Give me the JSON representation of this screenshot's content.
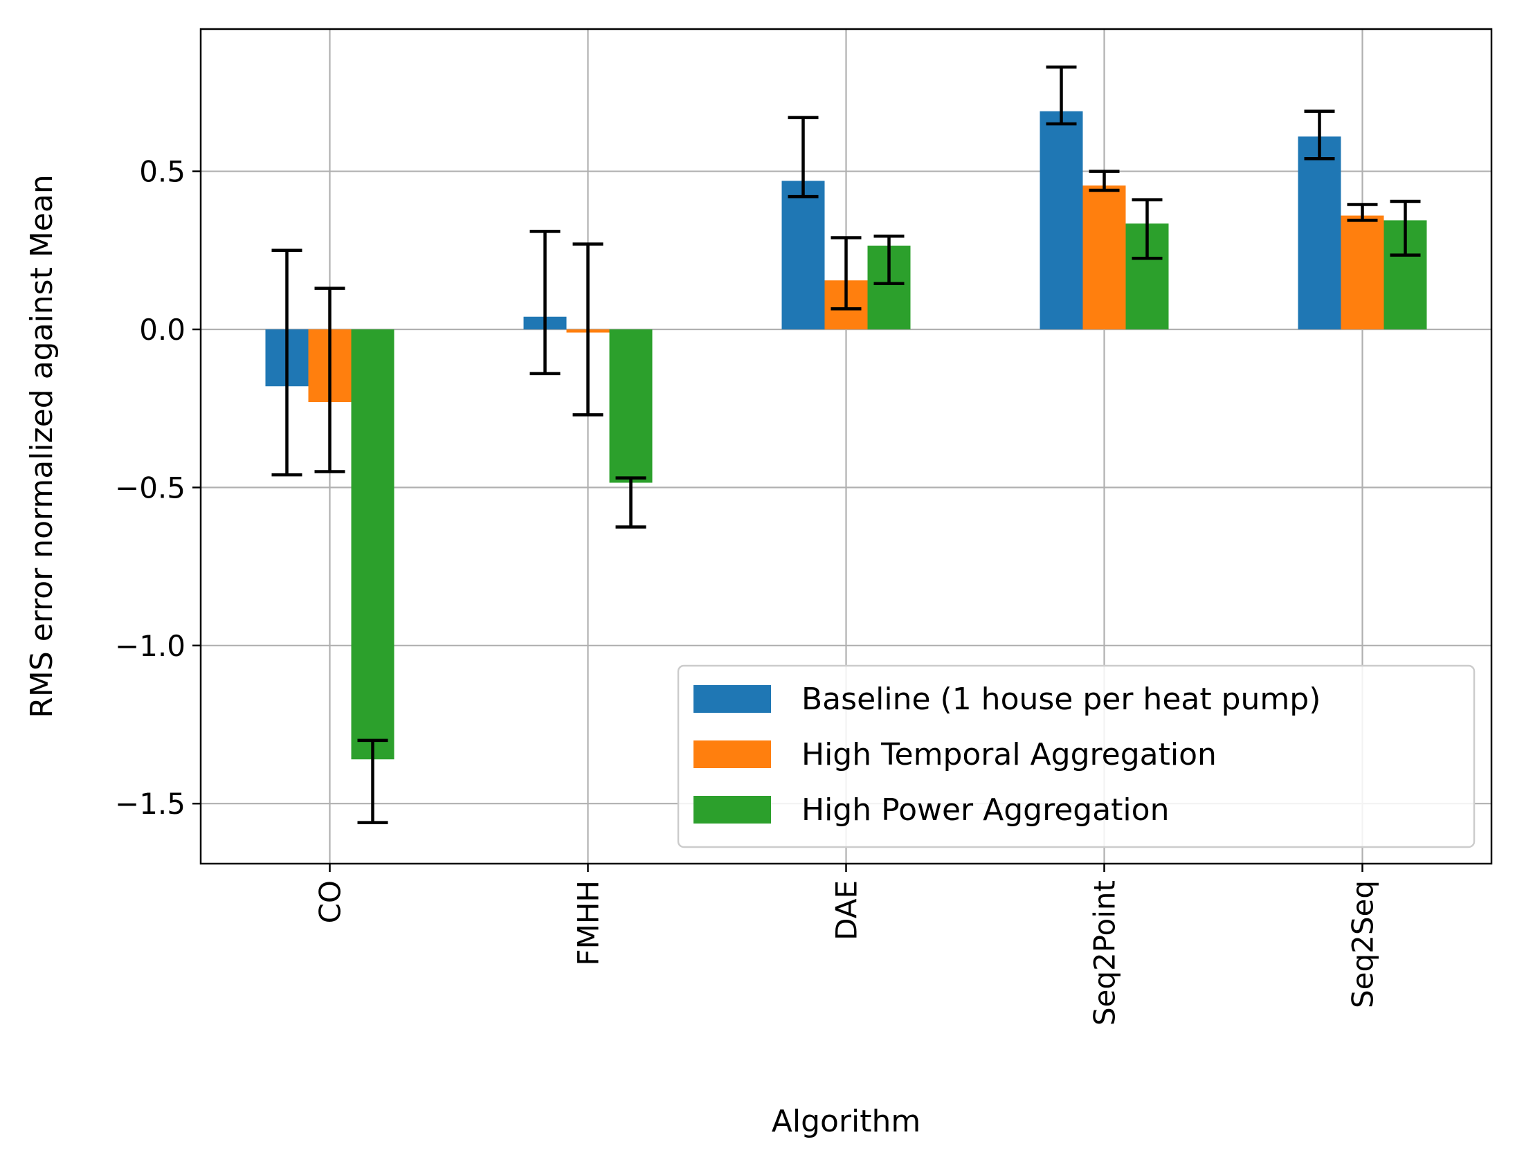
{
  "chart_data": {
    "type": "bar",
    "title": "",
    "xlabel": "Algorithm",
    "ylabel": "RMS error normalized against Mean",
    "categories": [
      "CO",
      "FMHH",
      "DAE",
      "Seq2Point",
      "Seq2Seq"
    ],
    "series": [
      {
        "name": "Baseline (1 house per heat pump)",
        "color": "#1f77b4",
        "values": [
          -0.18,
          0.04,
          0.47,
          0.69,
          0.61
        ],
        "err_low": [
          -0.46,
          -0.14,
          0.42,
          0.65,
          0.54
        ],
        "err_high": [
          0.25,
          0.31,
          0.67,
          0.83,
          0.69
        ]
      },
      {
        "name": "High Temporal Aggregation",
        "color": "#ff7f0e",
        "values": [
          -0.23,
          -0.01,
          0.155,
          0.455,
          0.36
        ],
        "err_low": [
          -0.45,
          -0.27,
          0.065,
          0.44,
          0.345
        ],
        "err_high": [
          0.13,
          0.27,
          0.29,
          0.5,
          0.395
        ]
      },
      {
        "name": "High Power Aggregation",
        "color": "#2ca02c",
        "values": [
          -1.36,
          -0.485,
          0.265,
          0.335,
          0.345
        ],
        "err_low": [
          -1.56,
          -0.625,
          0.145,
          0.225,
          0.235
        ],
        "err_high": [
          -1.3,
          -0.47,
          0.295,
          0.41,
          0.405
        ]
      }
    ],
    "ylim": [
      -1.69,
      0.95
    ],
    "yticks": [
      -1.5,
      -1.0,
      -0.5,
      0.0,
      0.5
    ],
    "ytick_labels": [
      "−1.5",
      "−1.0",
      "−0.5",
      "0.0",
      "0.5"
    ],
    "grid": true,
    "legend_position": "lower-right"
  }
}
